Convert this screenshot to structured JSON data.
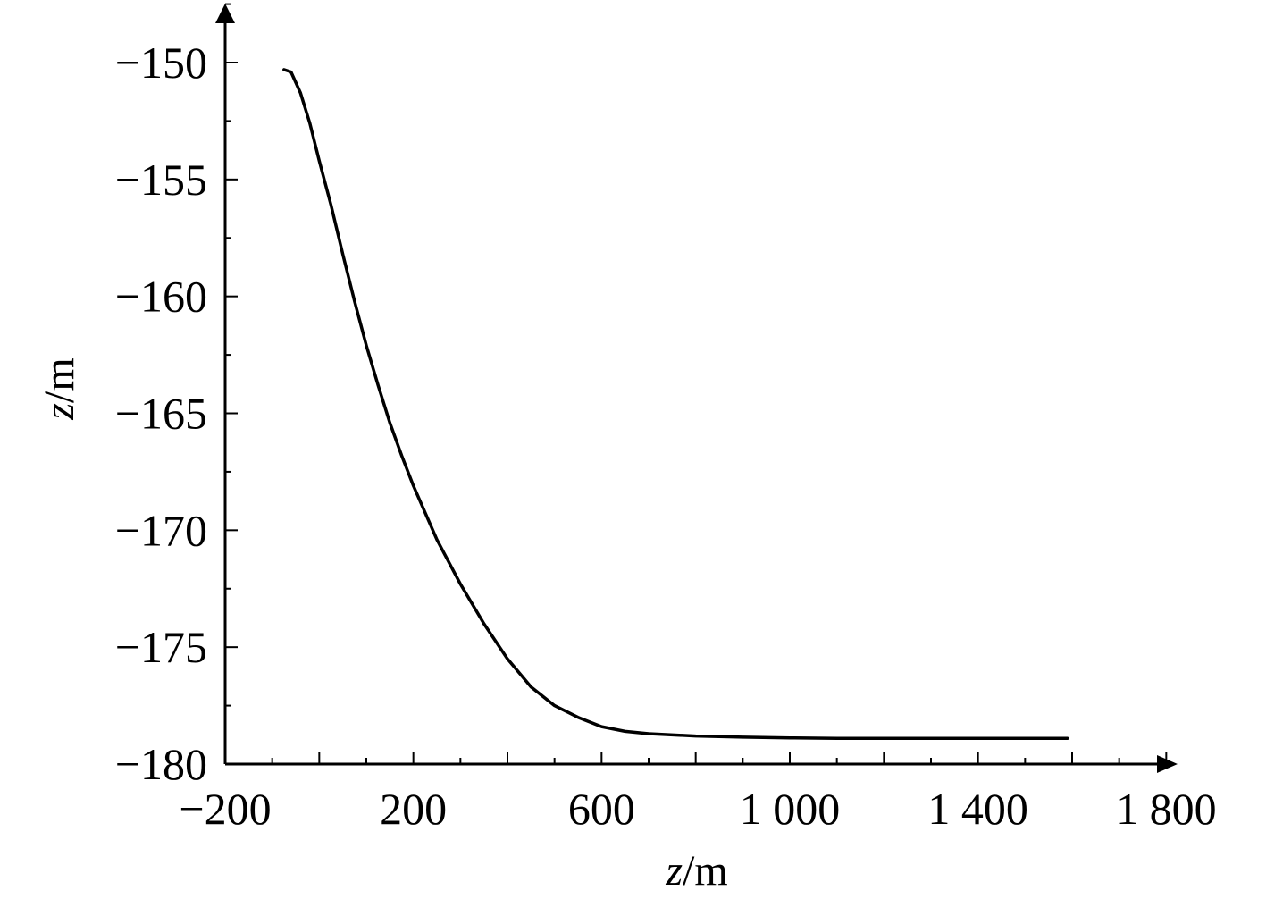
{
  "chart_data": {
    "type": "line",
    "title": "",
    "xlabel": {
      "italic": "z",
      "rest": "/m"
    },
    "ylabel": {
      "italic": "z",
      "rest": "/m"
    },
    "xlim": [
      -200,
      1800
    ],
    "ylim": [
      -180,
      -148
    ],
    "x_ticks": [
      -200,
      200,
      600,
      1000,
      1400,
      1800
    ],
    "x_tick_labels": [
      "−200",
      "200",
      "600",
      "1 000",
      "1 400",
      "1 800"
    ],
    "y_ticks": [
      -150,
      -155,
      -160,
      -165,
      -170,
      -175,
      -180
    ],
    "y_tick_labels": [
      "−150",
      "−155",
      "−160",
      "−165",
      "−170",
      "−175",
      "−180"
    ],
    "grid": false,
    "legend": "none",
    "series": [
      {
        "x": [
          -75,
          -60,
          -40,
          -20,
          0,
          25,
          50,
          75,
          100,
          125,
          150,
          175,
          200,
          250,
          300,
          350,
          400,
          450,
          500,
          550,
          600,
          650,
          700,
          800,
          900,
          1000,
          1100,
          1200,
          1300,
          1400,
          1500,
          1590
        ],
        "y": [
          -150.3,
          -150.4,
          -151.3,
          -152.6,
          -154.2,
          -156.1,
          -158.2,
          -160.2,
          -162.1,
          -163.8,
          -165.4,
          -166.8,
          -168.1,
          -170.4,
          -172.3,
          -174.0,
          -175.5,
          -176.7,
          -177.5,
          -178.0,
          -178.4,
          -178.6,
          -178.7,
          -178.8,
          -178.85,
          -178.88,
          -178.9,
          -178.9,
          -178.9,
          -178.9,
          -178.9,
          -178.9
        ]
      }
    ]
  }
}
